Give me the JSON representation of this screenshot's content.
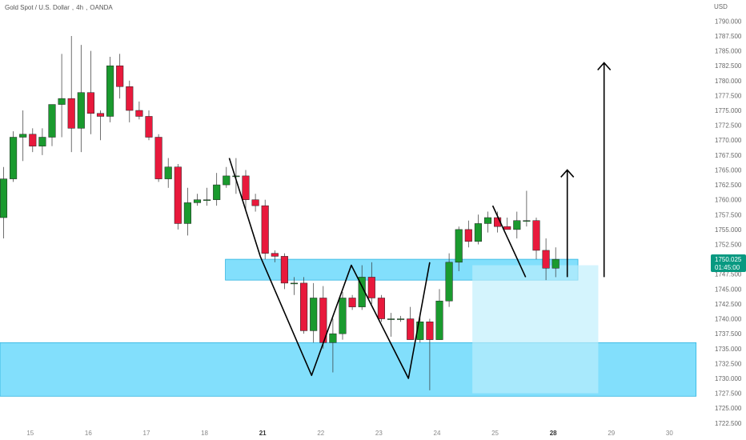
{
  "header": {
    "symbol": "Gold Spot / U.S. Dollar",
    "timeframe": "4h",
    "exchange": "OANDA",
    "separator": ","
  },
  "price_badge": {
    "price": "1750.025",
    "countdown": "01:45:00",
    "color": "#089981"
  },
  "colors": {
    "up": "#1a9a2e",
    "down": "#e8193c",
    "zone": "#5fd6fb",
    "zone_light": "#bdeefc",
    "zone_border": "#2fb4e0",
    "drawing": "#000000"
  },
  "chart_data": {
    "type": "candlestick",
    "unit": "USD",
    "ylim": [
      1721.8,
      1792.2
    ],
    "y_ticks": [
      1722.5,
      1725.0,
      1727.5,
      1730.0,
      1732.5,
      1735.0,
      1737.5,
      1740.0,
      1742.5,
      1745.0,
      1747.5,
      1750.0,
      1752.5,
      1755.0,
      1757.5,
      1760.0,
      1762.5,
      1765.0,
      1767.5,
      1770.0,
      1772.5,
      1775.0,
      1777.5,
      1780.0,
      1782.5,
      1785.0,
      1787.5,
      1790.0
    ],
    "x_ticks": [
      {
        "label": "15",
        "index": 2.75,
        "bold": false
      },
      {
        "label": "16",
        "index": 8.75,
        "bold": false
      },
      {
        "label": "17",
        "index": 14.75,
        "bold": false
      },
      {
        "label": "18",
        "index": 20.75,
        "bold": false
      },
      {
        "label": "21",
        "index": 26.75,
        "bold": true
      },
      {
        "label": "22",
        "index": 32.75,
        "bold": false
      },
      {
        "label": "23",
        "index": 38.75,
        "bold": false
      },
      {
        "label": "24",
        "index": 44.75,
        "bold": false
      },
      {
        "label": "25",
        "index": 50.75,
        "bold": false
      },
      {
        "label": "28",
        "index": 56.75,
        "bold": true
      },
      {
        "label": "29",
        "index": 62.75,
        "bold": false
      },
      {
        "label": "30",
        "index": 68.75,
        "bold": false
      }
    ],
    "candles": [
      {
        "o": 1757.0,
        "h": 1765.5,
        "l": 1753.5,
        "c": 1763.5
      },
      {
        "o": 1763.5,
        "h": 1771.5,
        "l": 1763.0,
        "c": 1770.5
      },
      {
        "o": 1770.5,
        "h": 1775.0,
        "l": 1766.5,
        "c": 1771.0
      },
      {
        "o": 1771.0,
        "h": 1772.0,
        "l": 1768.0,
        "c": 1769.0
      },
      {
        "o": 1769.0,
        "h": 1772.0,
        "l": 1767.5,
        "c": 1770.5
      },
      {
        "o": 1770.5,
        "h": 1775.5,
        "l": 1769.0,
        "c": 1776.0
      },
      {
        "o": 1776.0,
        "h": 1784.5,
        "l": 1770.5,
        "c": 1777.0
      },
      {
        "o": 1777.0,
        "h": 1787.5,
        "l": 1768.0,
        "c": 1772.0
      },
      {
        "o": 1772.0,
        "h": 1786.0,
        "l": 1768.0,
        "c": 1778.0
      },
      {
        "o": 1778.0,
        "h": 1785.0,
        "l": 1771.0,
        "c": 1774.5
      },
      {
        "o": 1774.5,
        "h": 1775.0,
        "l": 1770.0,
        "c": 1774.0
      },
      {
        "o": 1774.0,
        "h": 1784.0,
        "l": 1773.0,
        "c": 1782.5
      },
      {
        "o": 1782.5,
        "h": 1784.5,
        "l": 1777.0,
        "c": 1779.0
      },
      {
        "o": 1779.0,
        "h": 1780.0,
        "l": 1773.0,
        "c": 1775.0
      },
      {
        "o": 1775.0,
        "h": 1776.5,
        "l": 1773.5,
        "c": 1774.0
      },
      {
        "o": 1774.0,
        "h": 1775.0,
        "l": 1770.0,
        "c": 1770.5
      },
      {
        "o": 1770.5,
        "h": 1771.0,
        "l": 1763.0,
        "c": 1763.5
      },
      {
        "o": 1763.5,
        "h": 1767.0,
        "l": 1762.0,
        "c": 1765.5
      },
      {
        "o": 1765.5,
        "h": 1766.0,
        "l": 1755.0,
        "c": 1756.0
      },
      {
        "o": 1756.0,
        "h": 1762.0,
        "l": 1754.0,
        "c": 1759.5
      },
      {
        "o": 1759.5,
        "h": 1761.0,
        "l": 1759.0,
        "c": 1760.0
      },
      {
        "o": 1760.0,
        "h": 1762.0,
        "l": 1759.0,
        "c": 1760.0
      },
      {
        "o": 1760.0,
        "h": 1764.5,
        "l": 1759.0,
        "c": 1762.5
      },
      {
        "o": 1762.5,
        "h": 1765.5,
        "l": 1762.0,
        "c": 1764.0
      },
      {
        "o": 1764.0,
        "h": 1767.0,
        "l": 1761.0,
        "c": 1764.0
      },
      {
        "o": 1764.0,
        "h": 1765.0,
        "l": 1758.0,
        "c": 1760.0
      },
      {
        "o": 1760.0,
        "h": 1761.0,
        "l": 1758.0,
        "c": 1759.0
      },
      {
        "o": 1759.0,
        "h": 1760.0,
        "l": 1750.0,
        "c": 1751.0
      },
      {
        "o": 1751.0,
        "h": 1751.5,
        "l": 1749.5,
        "c": 1750.5
      },
      {
        "o": 1750.5,
        "h": 1751.0,
        "l": 1745.0,
        "c": 1746.0
      },
      {
        "o": 1746.0,
        "h": 1747.0,
        "l": 1744.0,
        "c": 1746.0
      },
      {
        "o": 1746.0,
        "h": 1747.0,
        "l": 1737.5,
        "c": 1738.0
      },
      {
        "o": 1738.0,
        "h": 1746.0,
        "l": 1736.0,
        "c": 1743.5
      },
      {
        "o": 1743.5,
        "h": 1745.5,
        "l": 1735.0,
        "c": 1736.0
      },
      {
        "o": 1736.0,
        "h": 1740.0,
        "l": 1731.0,
        "c": 1737.5
      },
      {
        "o": 1737.5,
        "h": 1744.5,
        "l": 1736.5,
        "c": 1743.5
      },
      {
        "o": 1743.5,
        "h": 1744.0,
        "l": 1741.5,
        "c": 1742.0
      },
      {
        "o": 1742.0,
        "h": 1749.0,
        "l": 1741.5,
        "c": 1747.0
      },
      {
        "o": 1747.0,
        "h": 1749.5,
        "l": 1742.5,
        "c": 1743.5
      },
      {
        "o": 1743.5,
        "h": 1744.0,
        "l": 1739.5,
        "c": 1740.0
      },
      {
        "o": 1740.0,
        "h": 1741.0,
        "l": 1737.0,
        "c": 1740.0
      },
      {
        "o": 1740.0,
        "h": 1740.5,
        "l": 1739.5,
        "c": 1740.0
      },
      {
        "o": 1740.0,
        "h": 1742.0,
        "l": 1736.5,
        "c": 1736.5
      },
      {
        "o": 1736.5,
        "h": 1741.0,
        "l": 1736.0,
        "c": 1739.5
      },
      {
        "o": 1739.5,
        "h": 1740.0,
        "l": 1728.0,
        "c": 1736.5
      },
      {
        "o": 1736.5,
        "h": 1745.0,
        "l": 1736.5,
        "c": 1743.0
      },
      {
        "o": 1743.0,
        "h": 1751.0,
        "l": 1742.0,
        "c": 1749.5
      },
      {
        "o": 1749.5,
        "h": 1755.5,
        "l": 1748.0,
        "c": 1755.0
      },
      {
        "o": 1755.0,
        "h": 1756.5,
        "l": 1752.0,
        "c": 1753.0
      },
      {
        "o": 1753.0,
        "h": 1757.5,
        "l": 1752.5,
        "c": 1756.0
      },
      {
        "o": 1756.0,
        "h": 1758.0,
        "l": 1754.5,
        "c": 1757.0
      },
      {
        "o": 1757.0,
        "h": 1758.0,
        "l": 1754.5,
        "c": 1755.5
      },
      {
        "o": 1755.5,
        "h": 1757.0,
        "l": 1755.0,
        "c": 1755.0
      },
      {
        "o": 1755.0,
        "h": 1758.0,
        "l": 1753.5,
        "c": 1756.5
      },
      {
        "o": 1756.5,
        "h": 1761.5,
        "l": 1755.5,
        "c": 1756.5
      },
      {
        "o": 1756.5,
        "h": 1757.0,
        "l": 1750.0,
        "c": 1751.5
      },
      {
        "o": 1751.5,
        "h": 1753.5,
        "l": 1746.5,
        "c": 1748.5
      },
      {
        "o": 1748.5,
        "h": 1752.0,
        "l": 1747.0,
        "c": 1750.0
      }
    ],
    "zones": [
      {
        "type": "resistance",
        "x0": 22.9,
        "x1": 59.3,
        "y_low": 1746.5,
        "y_high": 1750.0
      },
      {
        "type": "support",
        "x0": -2.0,
        "x1": 71.5,
        "y_low": 1727.0,
        "y_high": 1736.0
      },
      {
        "type": "projection",
        "x0": 48.4,
        "x1": 61.4,
        "y_low": 1727.5,
        "y_high": 1749.0
      }
    ],
    "drawings": [
      {
        "type": "pattern-line",
        "points": [
          [
            23.3,
            1767.0
          ],
          [
            26.5,
            1750.5
          ],
          [
            31.8,
            1730.5
          ],
          [
            35.9,
            1749.0
          ],
          [
            41.8,
            1730.0
          ],
          [
            44.0,
            1749.5
          ]
        ]
      },
      {
        "type": "pattern-line",
        "points": [
          [
            50.5,
            1759.0
          ],
          [
            53.9,
            1747.0
          ]
        ]
      },
      {
        "type": "arrow",
        "points": [
          [
            58.2,
            1747.0
          ],
          [
            58.2,
            1765.0
          ]
        ]
      },
      {
        "type": "arrow",
        "points": [
          [
            62.0,
            1747.0
          ],
          [
            62.0,
            1783.0
          ]
        ]
      }
    ]
  }
}
